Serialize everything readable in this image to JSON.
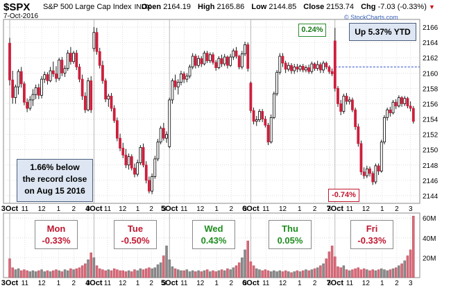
{
  "header": {
    "symbol": "$SPX",
    "name": "S&P 500 Large Cap Index",
    "exchange": "INDX",
    "date": "7-Oct-2016",
    "open_label": "Open",
    "open": "2164.19",
    "high_label": "High",
    "high": "2165.86",
    "low_label": "Low",
    "low": "2144.85",
    "close_label": "Close",
    "close": "2153.74",
    "chg_label": "Chg",
    "chg": "-7.03 (-0.33%)"
  },
  "watermark": "© StockCharts.com",
  "annotations": {
    "ytd": "Up 5.37% YTD",
    "record_line1": "1.66% below",
    "record_line2": "the record close",
    "record_line3": "on Aug 15 2016",
    "high_pct": "0.24%",
    "low_pct": "-0.74%"
  },
  "days": [
    {
      "name": "Mon",
      "chg": "-0.33%",
      "dir": "down"
    },
    {
      "name": "Tue",
      "chg": "-0.50%",
      "dir": "down"
    },
    {
      "name": "Wed",
      "chg": "0.43%",
      "dir": "up"
    },
    {
      "name": "Thu",
      "chg": "0.05%",
      "dir": "up"
    },
    {
      "name": "Fri",
      "chg": "-0.33%",
      "dir": "down"
    }
  ],
  "colors": {
    "up_body": "#ffffff",
    "down_body": "#cc1f3c",
    "volume_down": "#d96a78",
    "volume_up": "#8a8a8a",
    "grid": "#c8c8c8",
    "ref_line": "#3355cc"
  },
  "chart_data": {
    "type": "candlestick",
    "interval": "10-minute",
    "price_axis": {
      "ylim": [
        2143,
        2167
      ],
      "ticks": [
        2144,
        2146,
        2148,
        2150,
        2152,
        2154,
        2156,
        2158,
        2160,
        2162,
        2164,
        2166
      ],
      "side": "right"
    },
    "volume_axis": {
      "ylim": [
        0,
        65
      ],
      "ticks": [
        20,
        40,
        60
      ],
      "tick_labels": [
        "20M",
        "40M",
        "60M"
      ],
      "side": "right"
    },
    "x_tick_labels": [
      "3Oct",
      "11",
      "12",
      "1",
      "2",
      "3",
      "4Oct",
      "11",
      "12",
      "1",
      "2",
      "3",
      "5Oct",
      "11",
      "12",
      "1",
      "2",
      "3",
      "6Oct",
      "11",
      "12",
      "1",
      "2",
      "3",
      "7Oct",
      "11",
      "12",
      "1",
      "2",
      "3"
    ],
    "reference_line": {
      "value": 2160.8,
      "style": "dashed",
      "from_day": 5
    },
    "candles": [
      [
        2163.9,
        2164.6,
        2158.4,
        2159.1
      ],
      [
        2159.1,
        2160.3,
        2156.0,
        2156.8
      ],
      [
        2156.8,
        2158.5,
        2156.0,
        2158.2
      ],
      [
        2158.2,
        2160.5,
        2157.2,
        2160.2
      ],
      [
        2160.2,
        2160.8,
        2158.1,
        2158.6
      ],
      [
        2158.6,
        2158.9,
        2155.8,
        2156.2
      ],
      [
        2156.2,
        2156.7,
        2154.9,
        2155.4
      ],
      [
        2155.4,
        2157.0,
        2155.1,
        2156.5
      ],
      [
        2156.5,
        2157.9,
        2155.7,
        2157.2
      ],
      [
        2157.2,
        2158.5,
        2156.6,
        2158.1
      ],
      [
        2158.1,
        2158.6,
        2156.6,
        2157.1
      ],
      [
        2157.1,
        2159.6,
        2156.7,
        2159.2
      ],
      [
        2159.2,
        2160.2,
        2158.7,
        2159.8
      ],
      [
        2159.8,
        2160.1,
        2158.5,
        2159.0
      ],
      [
        2159.0,
        2160.8,
        2158.8,
        2160.3
      ],
      [
        2160.3,
        2161.5,
        2159.5,
        2159.9
      ],
      [
        2159.9,
        2160.9,
        2158.8,
        2159.3
      ],
      [
        2159.3,
        2162.0,
        2159.0,
        2161.7
      ],
      [
        2161.7,
        2162.1,
        2159.6,
        2160.0
      ],
      [
        2160.0,
        2161.0,
        2159.5,
        2160.6
      ],
      [
        2160.6,
        2163.0,
        2160.3,
        2162.6
      ],
      [
        2162.6,
        2163.4,
        2161.1,
        2161.5
      ],
      [
        2161.5,
        2162.9,
        2161.2,
        2162.6
      ],
      [
        2162.6,
        2163.0,
        2160.4,
        2160.8
      ],
      [
        2160.8,
        2161.2,
        2158.8,
        2159.2
      ],
      [
        2159.2,
        2159.8,
        2156.5,
        2157.0
      ],
      [
        2157.0,
        2157.5,
        2154.8,
        2155.2
      ],
      [
        2155.2,
        2159.4,
        2155.0,
        2159.0
      ],
      [
        2159.0,
        2159.6,
        2154.8,
        2155.2
      ],
      [
        2163.2,
        2166.0,
        2162.8,
        2165.3
      ],
      [
        2165.3,
        2165.9,
        2162.4,
        2162.8
      ],
      [
        2162.8,
        2163.3,
        2160.6,
        2161.0
      ],
      [
        2161.0,
        2161.6,
        2158.6,
        2159.0
      ],
      [
        2159.0,
        2159.3,
        2156.2,
        2156.6
      ],
      [
        2156.6,
        2157.3,
        2155.6,
        2157.0
      ],
      [
        2157.0,
        2157.4,
        2155.0,
        2155.4
      ],
      [
        2155.4,
        2155.8,
        2153.5,
        2153.8
      ],
      [
        2153.8,
        2154.2,
        2151.1,
        2151.5
      ],
      [
        2151.5,
        2152.1,
        2149.8,
        2150.2
      ],
      [
        2150.2,
        2150.9,
        2148.9,
        2149.3
      ],
      [
        2149.3,
        2150.1,
        2147.6,
        2148.0
      ],
      [
        2148.0,
        2149.5,
        2147.4,
        2149.1
      ],
      [
        2149.1,
        2149.4,
        2147.3,
        2147.6
      ],
      [
        2147.6,
        2148.2,
        2146.4,
        2146.8
      ],
      [
        2146.8,
        2148.7,
        2146.5,
        2148.3
      ],
      [
        2148.3,
        2150.6,
        2148.0,
        2150.3
      ],
      [
        2150.3,
        2150.8,
        2147.7,
        2148.0
      ],
      [
        2148.0,
        2148.5,
        2145.6,
        2146.0
      ],
      [
        2146.0,
        2146.5,
        2144.3,
        2144.6
      ],
      [
        2144.6,
        2146.9,
        2144.2,
        2146.5
      ],
      [
        2146.5,
        2149.2,
        2146.2,
        2148.8
      ],
      [
        2148.8,
        2151.4,
        2148.5,
        2151.0
      ],
      [
        2151.0,
        2153.1,
        2150.7,
        2152.8
      ],
      [
        2152.8,
        2153.5,
        2151.2,
        2151.5
      ],
      [
        2151.5,
        2152.4,
        2150.9,
        2152.0
      ],
      [
        2150.4,
        2156.8,
        2150.2,
        2156.5
      ],
      [
        2156.5,
        2159.3,
        2156.0,
        2159.0
      ],
      [
        2159.0,
        2159.8,
        2157.8,
        2158.2
      ],
      [
        2158.2,
        2159.2,
        2157.2,
        2158.8
      ],
      [
        2158.8,
        2160.3,
        2158.4,
        2159.9
      ],
      [
        2159.9,
        2160.2,
        2158.7,
        2159.2
      ],
      [
        2159.2,
        2160.0,
        2158.8,
        2159.6
      ],
      [
        2159.6,
        2161.1,
        2159.3,
        2160.8
      ],
      [
        2160.8,
        2162.6,
        2160.5,
        2162.2
      ],
      [
        2162.2,
        2162.5,
        2160.6,
        2161.0
      ],
      [
        2161.0,
        2162.3,
        2160.7,
        2161.9
      ],
      [
        2161.9,
        2162.2,
        2160.8,
        2161.2
      ],
      [
        2161.2,
        2162.9,
        2161.0,
        2162.6
      ],
      [
        2162.6,
        2162.9,
        2161.3,
        2161.6
      ],
      [
        2161.6,
        2162.7,
        2161.3,
        2162.4
      ],
      [
        2162.4,
        2162.7,
        2161.1,
        2161.4
      ],
      [
        2161.4,
        2161.7,
        2160.3,
        2160.7
      ],
      [
        2160.7,
        2162.2,
        2160.5,
        2161.9
      ],
      [
        2161.9,
        2162.4,
        2160.8,
        2161.2
      ],
      [
        2161.2,
        2162.5,
        2160.9,
        2162.1
      ],
      [
        2162.1,
        2162.3,
        2160.6,
        2161.0
      ],
      [
        2161.0,
        2162.5,
        2160.8,
        2162.1
      ],
      [
        2162.1,
        2163.2,
        2161.7,
        2162.9
      ],
      [
        2162.9,
        2163.4,
        2161.9,
        2162.2
      ],
      [
        2162.2,
        2162.4,
        2160.5,
        2160.8
      ],
      [
        2160.8,
        2162.9,
        2160.5,
        2162.5
      ],
      [
        2162.5,
        2164.1,
        2162.2,
        2163.7
      ],
      [
        2163.7,
        2164.0,
        2160.2,
        2160.6
      ],
      [
        2158.7,
        2158.9,
        2154.8,
        2155.1
      ],
      [
        2155.1,
        2155.5,
        2153.3,
        2153.7
      ],
      [
        2153.7,
        2154.4,
        2153.1,
        2153.9
      ],
      [
        2153.9,
        2155.3,
        2153.6,
        2155.0
      ],
      [
        2155.0,
        2155.3,
        2153.6,
        2154.0
      ],
      [
        2154.0,
        2154.4,
        2152.9,
        2153.2
      ],
      [
        2153.2,
        2153.5,
        2150.6,
        2151.0
      ],
      [
        2151.0,
        2154.6,
        2150.8,
        2154.2
      ],
      [
        2154.2,
        2157.6,
        2154.0,
        2157.3
      ],
      [
        2157.3,
        2160.4,
        2157.0,
        2160.1
      ],
      [
        2160.1,
        2162.6,
        2159.8,
        2162.2
      ],
      [
        2162.2,
        2162.6,
        2160.8,
        2161.3
      ],
      [
        2161.3,
        2161.6,
        2160.0,
        2160.5
      ],
      [
        2160.5,
        2161.4,
        2160.2,
        2161.0
      ],
      [
        2161.0,
        2161.3,
        2159.9,
        2160.3
      ],
      [
        2160.3,
        2161.2,
        2159.9,
        2160.8
      ],
      [
        2160.8,
        2161.2,
        2160.1,
        2160.5
      ],
      [
        2160.5,
        2161.1,
        2160.2,
        2160.9
      ],
      [
        2160.9,
        2161.2,
        2160.1,
        2160.4
      ],
      [
        2160.4,
        2161.0,
        2160.1,
        2160.7
      ],
      [
        2160.7,
        2161.1,
        2159.9,
        2160.2
      ],
      [
        2160.2,
        2161.5,
        2159.9,
        2161.2
      ],
      [
        2161.2,
        2161.4,
        2160.3,
        2160.6
      ],
      [
        2160.6,
        2161.6,
        2160.3,
        2161.1
      ],
      [
        2161.1,
        2161.4,
        2160.0,
        2160.4
      ],
      [
        2160.4,
        2161.6,
        2160.0,
        2161.3
      ],
      [
        2161.3,
        2161.5,
        2160.5,
        2160.8
      ],
      [
        2160.8,
        2161.0,
        2159.9,
        2160.2
      ],
      [
        2160.2,
        2160.6,
        2159.6,
        2159.9
      ],
      [
        2164.2,
        2165.9,
        2157.6,
        2158.0
      ],
      [
        2158.0,
        2158.3,
        2155.6,
        2156.0
      ],
      [
        2156.0,
        2156.5,
        2154.5,
        2155.0
      ],
      [
        2155.0,
        2157.3,
        2154.7,
        2157.0
      ],
      [
        2157.0,
        2157.4,
        2155.9,
        2156.3
      ],
      [
        2156.3,
        2156.9,
        2155.9,
        2156.5
      ],
      [
        2156.5,
        2156.8,
        2154.9,
        2155.2
      ],
      [
        2155.2,
        2155.5,
        2152.6,
        2153.0
      ],
      [
        2153.0,
        2153.4,
        2150.4,
        2150.8
      ],
      [
        2150.8,
        2151.2,
        2146.7,
        2147.1
      ],
      [
        2147.1,
        2147.7,
        2146.2,
        2146.6
      ],
      [
        2146.6,
        2147.9,
        2146.3,
        2147.5
      ],
      [
        2147.5,
        2147.8,
        2146.5,
        2146.9
      ],
      [
        2146.9,
        2147.2,
        2145.4,
        2145.8
      ],
      [
        2145.8,
        2148.2,
        2145.5,
        2147.9
      ],
      [
        2147.9,
        2148.2,
        2146.7,
        2147.2
      ],
      [
        2147.2,
        2151.3,
        2147.0,
        2151.0
      ],
      [
        2151.0,
        2154.5,
        2150.7,
        2154.2
      ],
      [
        2154.2,
        2155.5,
        2153.8,
        2155.2
      ],
      [
        2155.2,
        2155.6,
        2154.3,
        2154.8
      ],
      [
        2154.8,
        2156.5,
        2154.6,
        2156.2
      ],
      [
        2156.2,
        2156.6,
        2155.3,
        2155.7
      ],
      [
        2155.7,
        2157.1,
        2155.5,
        2156.8
      ],
      [
        2156.8,
        2157.0,
        2155.6,
        2156.0
      ],
      [
        2156.0,
        2157.0,
        2155.7,
        2156.7
      ],
      [
        2156.7,
        2156.9,
        2155.4,
        2155.7
      ],
      [
        2155.7,
        2156.3,
        2155.0,
        2155.4
      ],
      [
        2155.4,
        2155.7,
        2153.4,
        2153.7
      ]
    ],
    "volume_millions": [
      [
        19,
        10,
        8,
        9,
        7,
        8,
        7,
        6,
        7,
        6,
        7,
        8,
        6,
        7,
        6,
        7,
        8,
        7,
        6,
        8,
        7,
        9,
        8,
        9,
        10,
        12,
        14,
        18,
        25
      ],
      [
        20,
        12,
        9,
        8,
        7,
        8,
        7,
        9,
        8,
        7,
        7,
        6,
        7,
        6,
        8,
        7,
        9,
        8,
        9,
        10,
        9,
        10,
        13,
        15,
        22,
        32
      ],
      [
        18,
        11,
        9,
        8,
        7,
        7,
        8,
        6,
        7,
        6,
        7,
        6,
        7,
        8,
        6,
        7,
        6,
        7,
        8,
        7,
        9,
        8,
        10,
        12,
        15,
        20,
        28,
        37
      ],
      [
        16,
        12,
        9,
        8,
        7,
        8,
        7,
        6,
        7,
        6,
        7,
        6,
        7,
        6,
        5,
        6,
        7,
        6,
        7,
        8,
        7,
        8,
        9,
        10,
        12,
        14,
        19,
        26,
        32
      ],
      [
        21,
        11,
        10,
        12,
        8,
        7,
        8,
        9,
        10,
        8,
        9,
        8,
        7,
        8,
        7,
        8,
        9,
        8,
        7,
        8,
        9,
        10,
        12,
        14,
        17,
        22,
        28,
        62
      ]
    ]
  }
}
